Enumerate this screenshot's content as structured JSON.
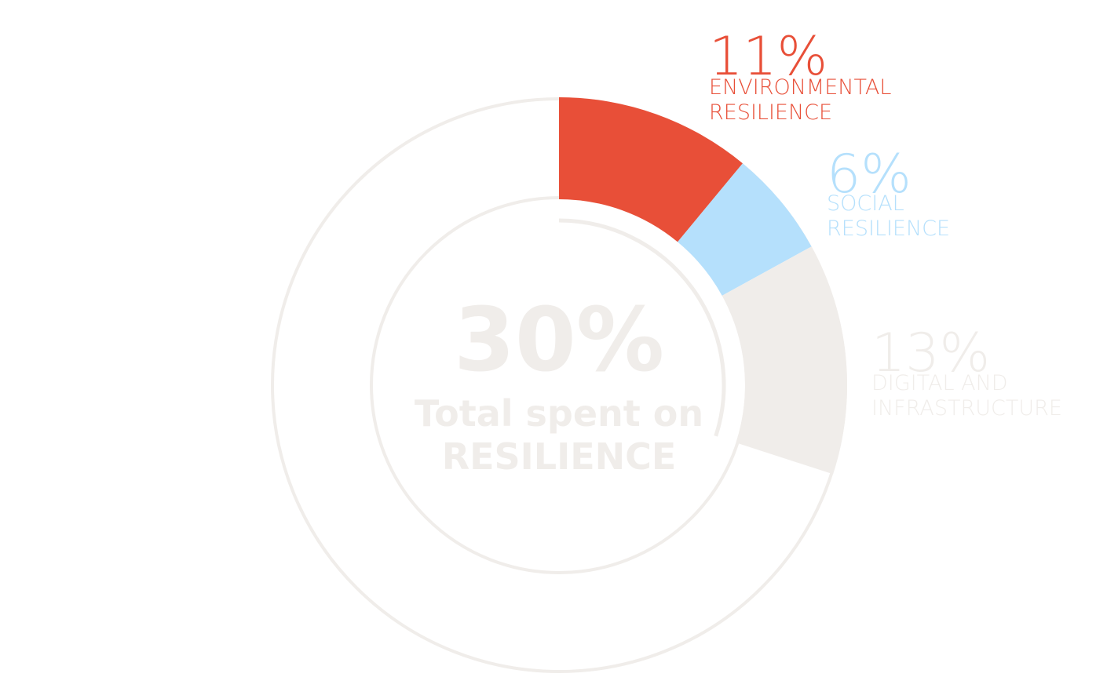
{
  "chart_data": {
    "type": "donut",
    "categories": [
      [
        "ENVIRONMENTAL",
        "RESILIENCE"
      ],
      [
        "SOCIAL",
        "RESILIENCE"
      ],
      [
        "DIGITAL AND",
        "INFRASTRUCTURE"
      ]
    ],
    "values": [
      11,
      6,
      13
    ],
    "value_labels": [
      "11%",
      "6%",
      "13%"
    ],
    "colors": [
      "#e84f38",
      "#b5e0fc",
      "#f0edea"
    ],
    "total": 100,
    "center": {
      "value": 30,
      "value_label": "30%",
      "text": [
        "Total spent on",
        "RESILIENCE"
      ]
    }
  }
}
